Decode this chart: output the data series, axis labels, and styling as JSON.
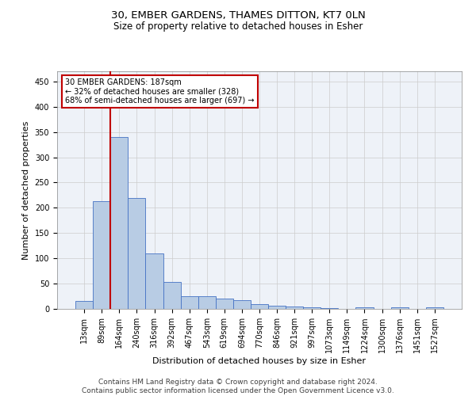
{
  "title1": "30, EMBER GARDENS, THAMES DITTON, KT7 0LN",
  "title2": "Size of property relative to detached houses in Esher",
  "xlabel": "Distribution of detached houses by size in Esher",
  "ylabel": "Number of detached properties",
  "categories": [
    "13sqm",
    "89sqm",
    "164sqm",
    "240sqm",
    "316sqm",
    "392sqm",
    "467sqm",
    "543sqm",
    "619sqm",
    "694sqm",
    "770sqm",
    "846sqm",
    "921sqm",
    "997sqm",
    "1073sqm",
    "1149sqm",
    "1224sqm",
    "1300sqm",
    "1376sqm",
    "1451sqm",
    "1527sqm"
  ],
  "values": [
    15,
    213,
    340,
    220,
    110,
    53,
    25,
    25,
    20,
    17,
    9,
    6,
    4,
    3,
    1,
    0,
    3,
    0,
    3,
    0,
    3
  ],
  "bar_color": "#b8cce4",
  "bar_edgecolor": "#4472c4",
  "annotation_text_line1": "30 EMBER GARDENS: 187sqm",
  "annotation_text_line2": "← 32% of detached houses are smaller (328)",
  "annotation_text_line3": "68% of semi-detached houses are larger (697) →",
  "vline_color": "#c00000",
  "annotation_box_edgecolor": "#c00000",
  "vline_x_index": 1.5,
  "ylim": [
    0,
    470
  ],
  "yticks": [
    0,
    50,
    100,
    150,
    200,
    250,
    300,
    350,
    400,
    450
  ],
  "footnote1": "Contains HM Land Registry data © Crown copyright and database right 2024.",
  "footnote2": "Contains public sector information licensed under the Open Government Licence v3.0.",
  "title1_fontsize": 9.5,
  "title2_fontsize": 8.5,
  "axis_label_fontsize": 8,
  "tick_fontsize": 7,
  "footnote_fontsize": 6.5
}
